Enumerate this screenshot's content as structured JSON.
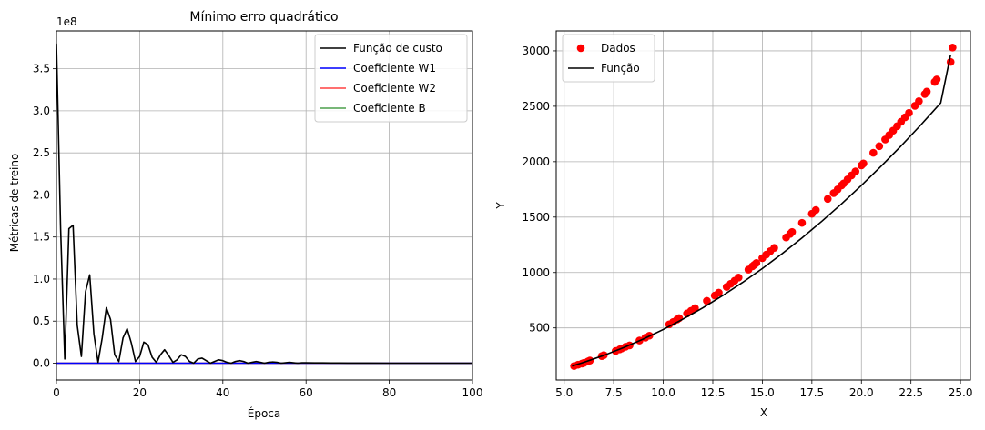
{
  "chart_data": [
    {
      "type": "line",
      "title": "Mínimo erro quadrático",
      "xlabel": "Época",
      "ylabel": "Métricas de treino",
      "y_offset_text": "1e8",
      "xlim": [
        0,
        100
      ],
      "ylim": [
        -0.2,
        3.95
      ],
      "x_ticks": [
        0,
        20,
        40,
        60,
        80,
        100
      ],
      "y_ticks": [
        0.0,
        0.5,
        1.0,
        1.5,
        2.0,
        2.5,
        3.0,
        3.5
      ],
      "x_tick_labels": [
        "0",
        "20",
        "40",
        "60",
        "80",
        "100"
      ],
      "y_tick_labels": [
        "0.0",
        "0.5",
        "1.0",
        "1.5",
        "2.0",
        "2.5",
        "3.0",
        "3.5"
      ],
      "grid": true,
      "legend_position": "top-right",
      "series": [
        {
          "name": "Função de custo",
          "color": "#000000",
          "x": [
            0,
            1,
            2,
            3,
            4,
            5,
            6,
            7,
            8,
            9,
            10,
            11,
            12,
            13,
            14,
            15,
            16,
            17,
            18,
            19,
            20,
            21,
            22,
            23,
            24,
            25,
            26,
            27,
            28,
            29,
            30,
            31,
            32,
            33,
            34,
            35,
            36,
            37,
            38,
            39,
            40,
            41,
            42,
            43,
            44,
            45,
            46,
            47,
            48,
            49,
            50,
            51,
            52,
            53,
            54,
            55,
            56,
            57,
            58,
            59,
            60,
            62,
            64,
            66,
            68,
            70,
            75,
            80,
            85,
            90,
            95,
            100
          ],
          "values": [
            3.8,
            1.6,
            0.05,
            1.6,
            1.64,
            0.45,
            0.08,
            0.85,
            1.05,
            0.35,
            0.01,
            0.3,
            0.66,
            0.52,
            0.1,
            0.02,
            0.3,
            0.41,
            0.24,
            0.02,
            0.08,
            0.25,
            0.22,
            0.07,
            0.01,
            0.1,
            0.16,
            0.09,
            0.01,
            0.04,
            0.1,
            0.08,
            0.02,
            0.0,
            0.05,
            0.06,
            0.03,
            0.0,
            0.02,
            0.04,
            0.03,
            0.01,
            0.0,
            0.02,
            0.03,
            0.02,
            0.0,
            0.01,
            0.02,
            0.01,
            0.0,
            0.01,
            0.015,
            0.01,
            0.0,
            0.005,
            0.01,
            0.005,
            0.0,
            0.005,
            0.005,
            0.003,
            0.003,
            0.002,
            0.002,
            0.001,
            0.001,
            0.0,
            0.0,
            0.0,
            0.0,
            0.0
          ]
        },
        {
          "name": "Coeficiente W1",
          "color": "#0000ff",
          "x": [
            0,
            100
          ],
          "values": [
            0,
            0
          ]
        },
        {
          "name": "Coeficiente W2",
          "color": "#ff4040",
          "x": [
            0,
            100
          ],
          "values": [
            0,
            0
          ]
        },
        {
          "name": "Coeficiente B",
          "color": "#4c9f4c",
          "x": [
            0,
            100
          ],
          "values": [
            0,
            0
          ]
        }
      ]
    },
    {
      "type": "scatter",
      "title": "",
      "xlabel": "X",
      "ylabel": "Y",
      "xlim": [
        4.6,
        25.5
      ],
      "ylim": [
        30,
        3180
      ],
      "x_ticks": [
        5.0,
        7.5,
        10.0,
        12.5,
        15.0,
        17.5,
        20.0,
        22.5,
        25.0
      ],
      "y_ticks": [
        500,
        1000,
        1500,
        2000,
        2500,
        3000
      ],
      "x_tick_labels": [
        "5.0",
        "7.5",
        "10.0",
        "12.5",
        "15.0",
        "17.5",
        "20.0",
        "22.5",
        "25.0"
      ],
      "y_tick_labels": [
        "500",
        "1000",
        "1500",
        "2000",
        "2500",
        "3000"
      ],
      "grid": true,
      "legend_position": "top-left",
      "series": [
        {
          "name": "Dados",
          "kind": "scatter",
          "color": "#ff0000",
          "x": [
            5.5,
            5.7,
            5.9,
            6.0,
            6.2,
            6.3,
            6.9,
            7.0,
            7.6,
            7.8,
            7.9,
            8.1,
            8.3,
            8.8,
            9.1,
            9.3,
            10.3,
            10.5,
            10.7,
            10.8,
            11.2,
            11.4,
            11.6,
            12.2,
            12.6,
            12.8,
            13.2,
            13.4,
            13.6,
            13.8,
            14.3,
            14.5,
            14.6,
            14.7,
            15.0,
            15.2,
            15.4,
            15.6,
            16.2,
            16.4,
            16.5,
            17.0,
            17.5,
            17.7,
            18.3,
            18.6,
            18.8,
            19.0,
            19.1,
            19.3,
            19.5,
            19.7,
            20.0,
            20.1,
            20.6,
            20.9,
            21.2,
            21.4,
            21.6,
            21.8,
            22.0,
            22.2,
            22.4,
            22.7,
            22.9,
            23.2,
            23.3,
            23.7,
            23.8,
            24.5,
            24.6
          ],
          "values": [
            156,
            168,
            178,
            184,
            198,
            206,
            246,
            254,
            292,
            306,
            314,
            330,
            342,
            386,
            412,
            430,
            532,
            554,
            576,
            588,
            630,
            654,
            678,
            744,
            792,
            818,
            870,
            898,
            926,
            954,
            1026,
            1056,
            1070,
            1086,
            1130,
            1162,
            1192,
            1222,
            1316,
            1348,
            1366,
            1448,
            1530,
            1564,
            1664,
            1716,
            1750,
            1786,
            1804,
            1840,
            1876,
            1912,
            1966,
            1984,
            2080,
            2140,
            2200,
            2240,
            2280,
            2320,
            2360,
            2400,
            2440,
            2504,
            2546,
            2610,
            2632,
            2720,
            2742,
            2900,
            3030
          ]
        },
        {
          "name": "Função",
          "kind": "line",
          "color": "#000000",
          "x": [
            5.4,
            6,
            7,
            8,
            9,
            10,
            11,
            12,
            13,
            14,
            15,
            16,
            17,
            18,
            19,
            20,
            21,
            22,
            23,
            24,
            24.5
          ],
          "values": [
            156,
            190,
            252,
            322,
            400,
            486,
            580,
            682,
            792,
            910,
            1036,
            1170,
            1312,
            1462,
            1620,
            1786,
            1960,
            2142,
            2332,
            2530,
            2965
          ]
        }
      ]
    }
  ]
}
